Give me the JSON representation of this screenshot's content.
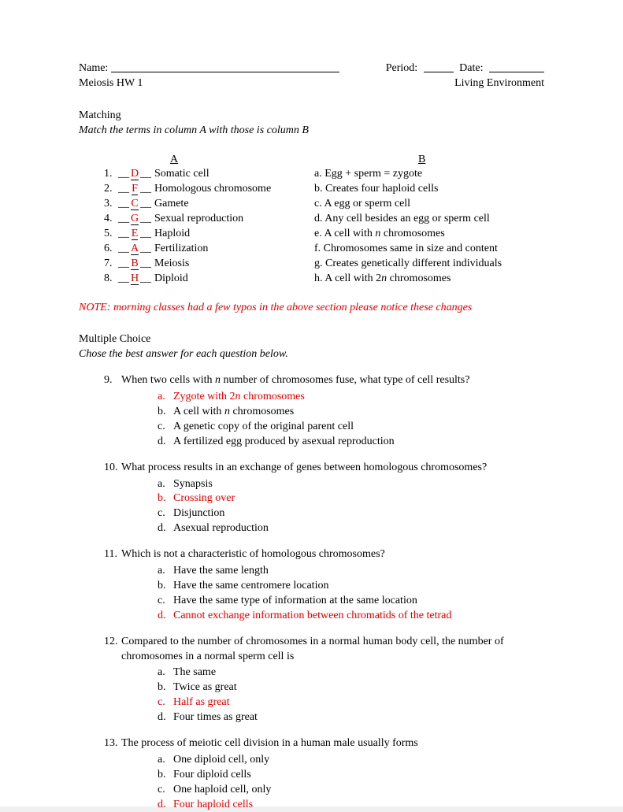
{
  "header": {
    "name_label": "Name:",
    "period_label": "Period:",
    "date_label": "Date:",
    "hw_title": "Meiosis HW 1",
    "course": "Living Environment"
  },
  "matching": {
    "title": "Matching",
    "instruction": "Match the terms in column A with those is column B",
    "col_a": "A",
    "col_b": "B",
    "rows": [
      {
        "num": "1.",
        "ans": "D",
        "term": "Somatic cell",
        "def": "a. Egg + sperm = zygote"
      },
      {
        "num": "2.",
        "ans": "F",
        "term": "Homologous chromosome",
        "def": "b. Creates four haploid cells"
      },
      {
        "num": "3.",
        "ans": "C",
        "term": "Gamete",
        "def": "c. A egg or sperm cell"
      },
      {
        "num": "4.",
        "ans": "G",
        "term": "Sexual reproduction",
        "def": "d. Any cell besides an egg or sperm cell"
      },
      {
        "num": "5.",
        "ans": "E",
        "term": "Haploid",
        "def_pre": "e. A cell with ",
        "def_n": "n",
        "def_post": " chromosomes"
      },
      {
        "num": "6.",
        "ans": "A",
        "term": "Fertilization",
        "def": "f. Chromosomes same in size and content"
      },
      {
        "num": "7.",
        "ans": "B",
        "term": "Meiosis",
        "def": "g. Creates genetically different individuals"
      },
      {
        "num": "8.",
        "ans": "H",
        "term": "Diploid",
        "def_pre": "h. A cell with 2",
        "def_n": "n",
        "def_post": " chromosomes"
      }
    ]
  },
  "note": "NOTE: morning classes had a few typos in the above section please notice these changes",
  "mc": {
    "title": "Multiple Choice",
    "instruction": "Chose the best answer for each question below.",
    "q9": {
      "num": "9.",
      "q_pre": "When two cells with ",
      "q_n": "n",
      "q_post": " number of chromosomes fuse, what type of cell results?",
      "a_pre": "Zygote with 2",
      "a_n": "n",
      "a_post": " chromosomes",
      "b_pre": "A cell with ",
      "b_n": "n",
      "b_post": " chromosomes",
      "c": "A genetic copy of the original parent cell",
      "d": "A fertilized egg produced by asexual reproduction",
      "la": "a.",
      "lb": "b.",
      "lc": "c.",
      "ld": "d."
    },
    "q10": {
      "num": "10.",
      "q": "What process results in an exchange of genes between homologous chromosomes?",
      "a": "Synapsis",
      "b": "Crossing over",
      "c": "Disjunction",
      "d": "Asexual reproduction",
      "la": "a.",
      "lb": "b.",
      "lc": "c.",
      "ld": "d."
    },
    "q11": {
      "num": "11.",
      "q": "Which is not a characteristic of homologous chromosomes?",
      "a": "Have the same length",
      "b": "Have the same centromere location",
      "c": "Have the same type of information at the same location",
      "d": "Cannot exchange information between chromatids of the tetrad",
      "la": "a.",
      "lb": "b.",
      "lc": "c.",
      "ld": "d."
    },
    "q12": {
      "num": "12.",
      "q": "Compared to the number of chromosomes in a normal human body cell, the number of chromosomes in a normal sperm cell is",
      "a": "The same",
      "b": "Twice as great",
      "c": "Half as great",
      "d": "Four times as great",
      "la": "a.",
      "lb": "b.",
      "lc": "c.",
      "ld": "d."
    },
    "q13": {
      "num": "13.",
      "q": "The process of meiotic cell division in a human male usually forms",
      "a": "One diploid cell, only",
      "b": "Four diploid cells",
      "c": "One haploid cell, only",
      "d": "Four haploid cells",
      "la": "a.",
      "lb": "b.",
      "lc": "c.",
      "ld": "d."
    }
  }
}
